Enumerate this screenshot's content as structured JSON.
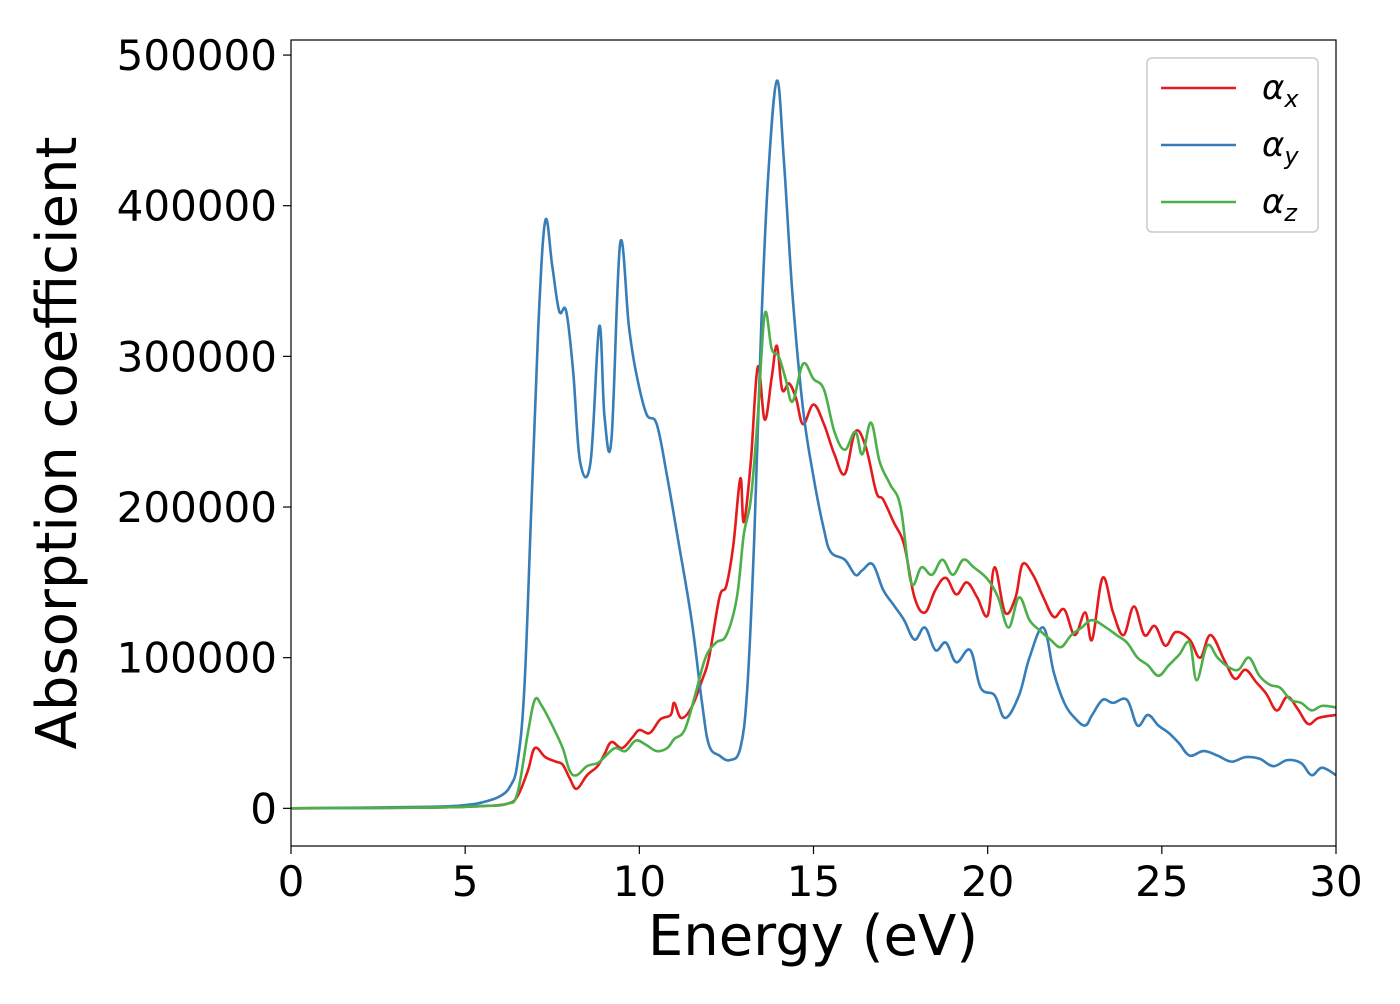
{
  "chart_data": {
    "type": "line",
    "title": "",
    "xlabel": "Energy (eV)",
    "ylabel": "Absorption coefficient",
    "xlim": [
      0,
      30
    ],
    "ylim": [
      -25000,
      510000
    ],
    "xticks": [
      0,
      5,
      10,
      15,
      20,
      25,
      30
    ],
    "yticks": [
      0,
      100000,
      200000,
      300000,
      400000,
      500000
    ],
    "xtick_labels": [
      "0",
      "5",
      "10",
      "15",
      "20",
      "25",
      "30"
    ],
    "ytick_labels": [
      "0",
      "100000",
      "200000",
      "300000",
      "400000",
      "500000"
    ],
    "grid": false,
    "legend_position": "top-right",
    "series": [
      {
        "name": "α",
        "subscript": "x",
        "color": "#e41a1c",
        "points": [
          [
            0,
            0
          ],
          [
            4,
            500
          ],
          [
            5.5,
            1500
          ],
          [
            6.2,
            3000
          ],
          [
            6.5,
            8000
          ],
          [
            6.8,
            25000
          ],
          [
            7.0,
            40000
          ],
          [
            7.3,
            34000
          ],
          [
            7.6,
            31000
          ],
          [
            7.8,
            29000
          ],
          [
            8.0,
            20000
          ],
          [
            8.2,
            13000
          ],
          [
            8.5,
            22000
          ],
          [
            8.8,
            28000
          ],
          [
            9.0,
            36000
          ],
          [
            9.2,
            44000
          ],
          [
            9.5,
            40000
          ],
          [
            9.8,
            47000
          ],
          [
            10.0,
            52000
          ],
          [
            10.3,
            50000
          ],
          [
            10.6,
            59000
          ],
          [
            10.9,
            62000
          ],
          [
            11.0,
            70000
          ],
          [
            11.2,
            60000
          ],
          [
            11.5,
            67000
          ],
          [
            11.8,
            85000
          ],
          [
            12.0,
            100000
          ],
          [
            12.3,
            140000
          ],
          [
            12.5,
            148000
          ],
          [
            12.7,
            175000
          ],
          [
            12.9,
            219000
          ],
          [
            13.0,
            190000
          ],
          [
            13.2,
            230000
          ],
          [
            13.4,
            293000
          ],
          [
            13.6,
            258000
          ],
          [
            13.8,
            286000
          ],
          [
            13.95,
            307000
          ],
          [
            14.1,
            278000
          ],
          [
            14.3,
            282000
          ],
          [
            14.5,
            272000
          ],
          [
            14.7,
            255000
          ],
          [
            15.0,
            268000
          ],
          [
            15.3,
            255000
          ],
          [
            15.6,
            235000
          ],
          [
            15.9,
            222000
          ],
          [
            16.2,
            250000
          ],
          [
            16.5,
            240000
          ],
          [
            16.8,
            210000
          ],
          [
            17.0,
            205000
          ],
          [
            17.3,
            190000
          ],
          [
            17.6,
            175000
          ],
          [
            17.9,
            140000
          ],
          [
            18.2,
            130000
          ],
          [
            18.5,
            145000
          ],
          [
            18.8,
            153000
          ],
          [
            19.1,
            142000
          ],
          [
            19.4,
            150000
          ],
          [
            19.7,
            140000
          ],
          [
            20.0,
            128000
          ],
          [
            20.2,
            160000
          ],
          [
            20.5,
            130000
          ],
          [
            20.8,
            140000
          ],
          [
            21.0,
            162000
          ],
          [
            21.3,
            155000
          ],
          [
            21.6,
            140000
          ],
          [
            21.9,
            127000
          ],
          [
            22.2,
            132000
          ],
          [
            22.5,
            115000
          ],
          [
            22.8,
            130000
          ],
          [
            23.0,
            112000
          ],
          [
            23.3,
            153000
          ],
          [
            23.6,
            130000
          ],
          [
            23.9,
            115000
          ],
          [
            24.2,
            134000
          ],
          [
            24.5,
            115000
          ],
          [
            24.8,
            121000
          ],
          [
            25.1,
            108000
          ],
          [
            25.4,
            117000
          ],
          [
            25.8,
            112000
          ],
          [
            26.1,
            100000
          ],
          [
            26.4,
            115000
          ],
          [
            26.8,
            98000
          ],
          [
            27.1,
            86000
          ],
          [
            27.4,
            92000
          ],
          [
            27.7,
            84000
          ],
          [
            28.0,
            76000
          ],
          [
            28.3,
            65000
          ],
          [
            28.6,
            74000
          ],
          [
            28.9,
            66000
          ],
          [
            29.2,
            56000
          ],
          [
            29.5,
            60000
          ],
          [
            30.0,
            62000
          ]
        ]
      },
      {
        "name": "α",
        "subscript": "y",
        "color": "#377eb8",
        "points": [
          [
            0,
            0
          ],
          [
            4,
            1000
          ],
          [
            5,
            2200
          ],
          [
            5.5,
            4000
          ],
          [
            6.0,
            8000
          ],
          [
            6.3,
            15000
          ],
          [
            6.5,
            30000
          ],
          [
            6.7,
            80000
          ],
          [
            6.9,
            200000
          ],
          [
            7.1,
            320000
          ],
          [
            7.3,
            390000
          ],
          [
            7.5,
            360000
          ],
          [
            7.7,
            330000
          ],
          [
            7.9,
            330000
          ],
          [
            8.1,
            290000
          ],
          [
            8.3,
            230000
          ],
          [
            8.6,
            230000
          ],
          [
            8.85,
            320000
          ],
          [
            9.0,
            260000
          ],
          [
            9.2,
            245000
          ],
          [
            9.45,
            375000
          ],
          [
            9.7,
            320000
          ],
          [
            9.9,
            290000
          ],
          [
            10.2,
            262000
          ],
          [
            10.5,
            255000
          ],
          [
            10.8,
            220000
          ],
          [
            11.1,
            180000
          ],
          [
            11.5,
            125000
          ],
          [
            11.8,
            70000
          ],
          [
            12.0,
            42000
          ],
          [
            12.3,
            35000
          ],
          [
            12.6,
            32000
          ],
          [
            12.9,
            40000
          ],
          [
            13.1,
            80000
          ],
          [
            13.3,
            180000
          ],
          [
            13.5,
            320000
          ],
          [
            13.7,
            420000
          ],
          [
            13.95,
            483000
          ],
          [
            14.15,
            430000
          ],
          [
            14.4,
            340000
          ],
          [
            14.7,
            265000
          ],
          [
            15.0,
            220000
          ],
          [
            15.3,
            185000
          ],
          [
            15.5,
            170000
          ],
          [
            15.9,
            165000
          ],
          [
            16.2,
            155000
          ],
          [
            16.4,
            158000
          ],
          [
            16.7,
            162000
          ],
          [
            17.0,
            145000
          ],
          [
            17.3,
            135000
          ],
          [
            17.6,
            125000
          ],
          [
            17.9,
            112000
          ],
          [
            18.2,
            120000
          ],
          [
            18.5,
            105000
          ],
          [
            18.8,
            110000
          ],
          [
            19.1,
            97000
          ],
          [
            19.5,
            105000
          ],
          [
            19.8,
            80000
          ],
          [
            20.2,
            75000
          ],
          [
            20.5,
            60000
          ],
          [
            20.9,
            75000
          ],
          [
            21.2,
            100000
          ],
          [
            21.6,
            120000
          ],
          [
            21.9,
            90000
          ],
          [
            22.2,
            70000
          ],
          [
            22.5,
            60000
          ],
          [
            22.8,
            55000
          ],
          [
            23.0,
            62000
          ],
          [
            23.3,
            72000
          ],
          [
            23.6,
            70000
          ],
          [
            24.0,
            72000
          ],
          [
            24.3,
            55000
          ],
          [
            24.6,
            62000
          ],
          [
            24.9,
            55000
          ],
          [
            25.2,
            50000
          ],
          [
            25.5,
            43000
          ],
          [
            25.8,
            35000
          ],
          [
            26.2,
            38000
          ],
          [
            26.6,
            35000
          ],
          [
            27.0,
            31000
          ],
          [
            27.4,
            34000
          ],
          [
            27.8,
            33000
          ],
          [
            28.2,
            28000
          ],
          [
            28.6,
            32000
          ],
          [
            29.0,
            30000
          ],
          [
            29.3,
            22000
          ],
          [
            29.6,
            27000
          ],
          [
            30.0,
            22000
          ]
        ]
      },
      {
        "name": "α",
        "subscript": "z",
        "color": "#4daf4a",
        "points": [
          [
            0,
            0
          ],
          [
            4,
            500
          ],
          [
            5.5,
            1500
          ],
          [
            6.2,
            3000
          ],
          [
            6.5,
            10000
          ],
          [
            6.8,
            50000
          ],
          [
            7.0,
            72000
          ],
          [
            7.2,
            68000
          ],
          [
            7.5,
            55000
          ],
          [
            7.8,
            40000
          ],
          [
            8.0,
            25000
          ],
          [
            8.2,
            22000
          ],
          [
            8.5,
            28000
          ],
          [
            8.8,
            30000
          ],
          [
            9.0,
            34000
          ],
          [
            9.3,
            40000
          ],
          [
            9.6,
            38000
          ],
          [
            9.9,
            45000
          ],
          [
            10.2,
            42000
          ],
          [
            10.5,
            38000
          ],
          [
            10.8,
            40000
          ],
          [
            11.0,
            46000
          ],
          [
            11.3,
            52000
          ],
          [
            11.6,
            75000
          ],
          [
            11.9,
            100000
          ],
          [
            12.2,
            110000
          ],
          [
            12.5,
            115000
          ],
          [
            12.8,
            140000
          ],
          [
            13.0,
            182000
          ],
          [
            13.2,
            205000
          ],
          [
            13.4,
            260000
          ],
          [
            13.6,
            328000
          ],
          [
            13.8,
            305000
          ],
          [
            14.0,
            300000
          ],
          [
            14.2,
            285000
          ],
          [
            14.4,
            270000
          ],
          [
            14.7,
            295000
          ],
          [
            15.0,
            285000
          ],
          [
            15.3,
            278000
          ],
          [
            15.6,
            250000
          ],
          [
            15.9,
            238000
          ],
          [
            16.2,
            250000
          ],
          [
            16.4,
            235000
          ],
          [
            16.65,
            256000
          ],
          [
            16.9,
            230000
          ],
          [
            17.2,
            215000
          ],
          [
            17.5,
            200000
          ],
          [
            17.8,
            150000
          ],
          [
            18.1,
            160000
          ],
          [
            18.4,
            155000
          ],
          [
            18.7,
            165000
          ],
          [
            19.0,
            155000
          ],
          [
            19.3,
            165000
          ],
          [
            19.6,
            160000
          ],
          [
            20.0,
            152000
          ],
          [
            20.3,
            140000
          ],
          [
            20.6,
            120000
          ],
          [
            20.9,
            140000
          ],
          [
            21.2,
            125000
          ],
          [
            21.5,
            118000
          ],
          [
            21.8,
            112000
          ],
          [
            22.1,
            107000
          ],
          [
            22.4,
            115000
          ],
          [
            22.7,
            120000
          ],
          [
            23.0,
            125000
          ],
          [
            23.4,
            120000
          ],
          [
            23.7,
            115000
          ],
          [
            24.0,
            110000
          ],
          [
            24.3,
            100000
          ],
          [
            24.6,
            95000
          ],
          [
            24.9,
            88000
          ],
          [
            25.2,
            95000
          ],
          [
            25.5,
            102000
          ],
          [
            25.8,
            110000
          ],
          [
            26.0,
            85000
          ],
          [
            26.3,
            108000
          ],
          [
            26.6,
            100000
          ],
          [
            26.9,
            94000
          ],
          [
            27.2,
            92000
          ],
          [
            27.5,
            100000
          ],
          [
            27.8,
            88000
          ],
          [
            28.1,
            82000
          ],
          [
            28.4,
            80000
          ],
          [
            28.7,
            72000
          ],
          [
            29.0,
            70000
          ],
          [
            29.3,
            65000
          ],
          [
            29.6,
            68000
          ],
          [
            30.0,
            67000
          ]
        ]
      }
    ]
  }
}
